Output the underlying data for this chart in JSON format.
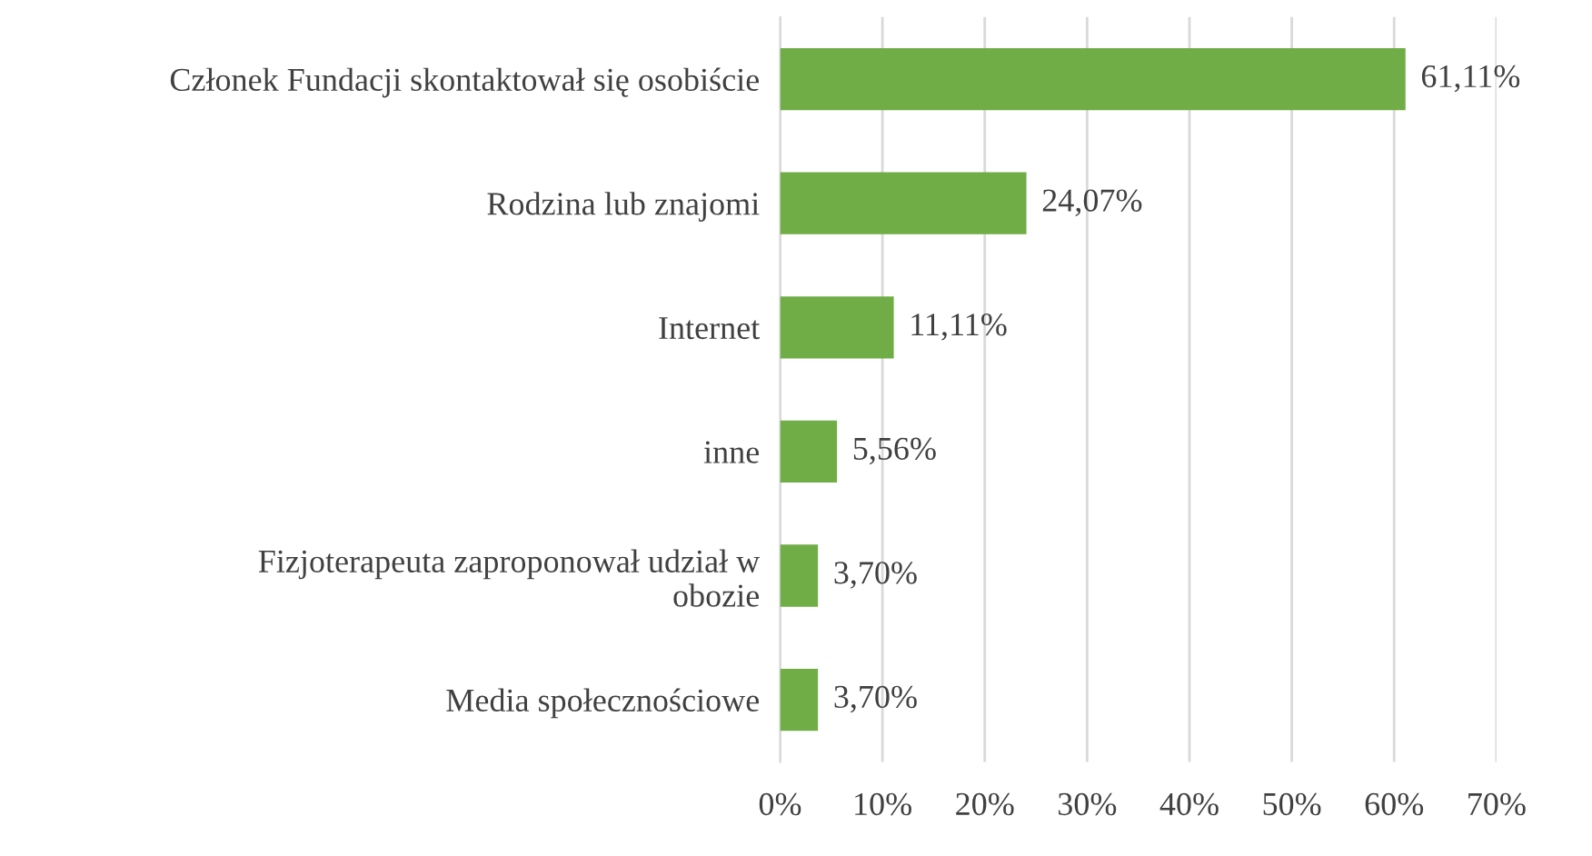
{
  "chart_data": {
    "type": "bar",
    "orientation": "horizontal",
    "categories": [
      "Członek Fundacji skontaktował się osobiście",
      "Rodzina lub znajomi",
      "Internet",
      "inne",
      "Fizjoterapeuta zaproponował udział w\nobozie",
      "Media społecznościowe"
    ],
    "values": [
      61.11,
      24.07,
      11.11,
      5.56,
      3.7,
      3.7
    ],
    "value_labels": [
      "61,11%",
      "24,07%",
      "11,11%",
      "5,56%",
      "3,70%",
      "3,70%"
    ],
    "color": "#70ad47",
    "xlim": [
      0,
      70
    ],
    "xticks": [
      {
        "value": 0,
        "label": "0%"
      },
      {
        "value": 10,
        "label": "10%"
      },
      {
        "value": 20,
        "label": "20%"
      },
      {
        "value": 30,
        "label": "30%"
      },
      {
        "value": 40,
        "label": "40%"
      },
      {
        "value": 50,
        "label": "50%"
      },
      {
        "value": 60,
        "label": "60%"
      },
      {
        "value": 70,
        "label": "70%"
      }
    ],
    "grid": "x",
    "legend": false
  }
}
